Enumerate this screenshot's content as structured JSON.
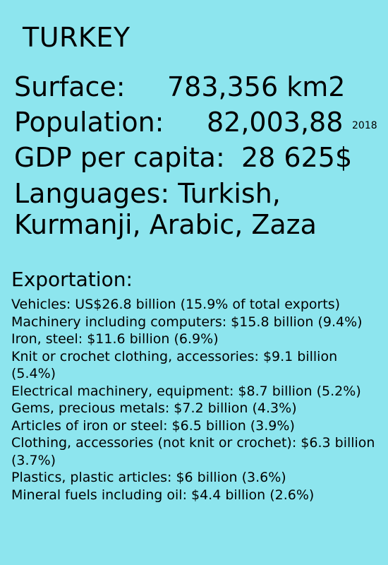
{
  "title": "TURKEY",
  "stats": {
    "surface_label": "Surface:",
    "surface_value": "783,356 km2",
    "population_label": "Population:",
    "population_value": "82,003,88",
    "population_year": "2018",
    "gdp_label": "GDP per capita:",
    "gdp_value": "28 625$",
    "languages": "Languages: Turkish, Kurmanji, Arabic, Zaza"
  },
  "exports": {
    "heading": "Exportation:",
    "items": [
      "Vehicles: US$26.8 billion (15.9% of total exports)",
      "Machinery including computers: $15.8 billion (9.4%)",
      "Iron, steel: $11.6 billion (6.9%)",
      "Knit or crochet clothing, accessories: $9.1 billion (5.4%)",
      "Electrical machinery, equipment: $8.7 billion (5.2%)",
      "Gems, precious metals: $7.2 billion (4.3%)",
      "Articles of iron or steel: $6.5 billion (3.9%)",
      "Clothing, accessories (not knit or crochet): $6.3 billion (3.7%)",
      "Plastics, plastic articles: $6 billion (3.6%)",
      "Mineral fuels including oil: $4.4 billion (2.6%)"
    ]
  },
  "colors": {
    "background": "#8de5ee",
    "text": "#000000"
  }
}
